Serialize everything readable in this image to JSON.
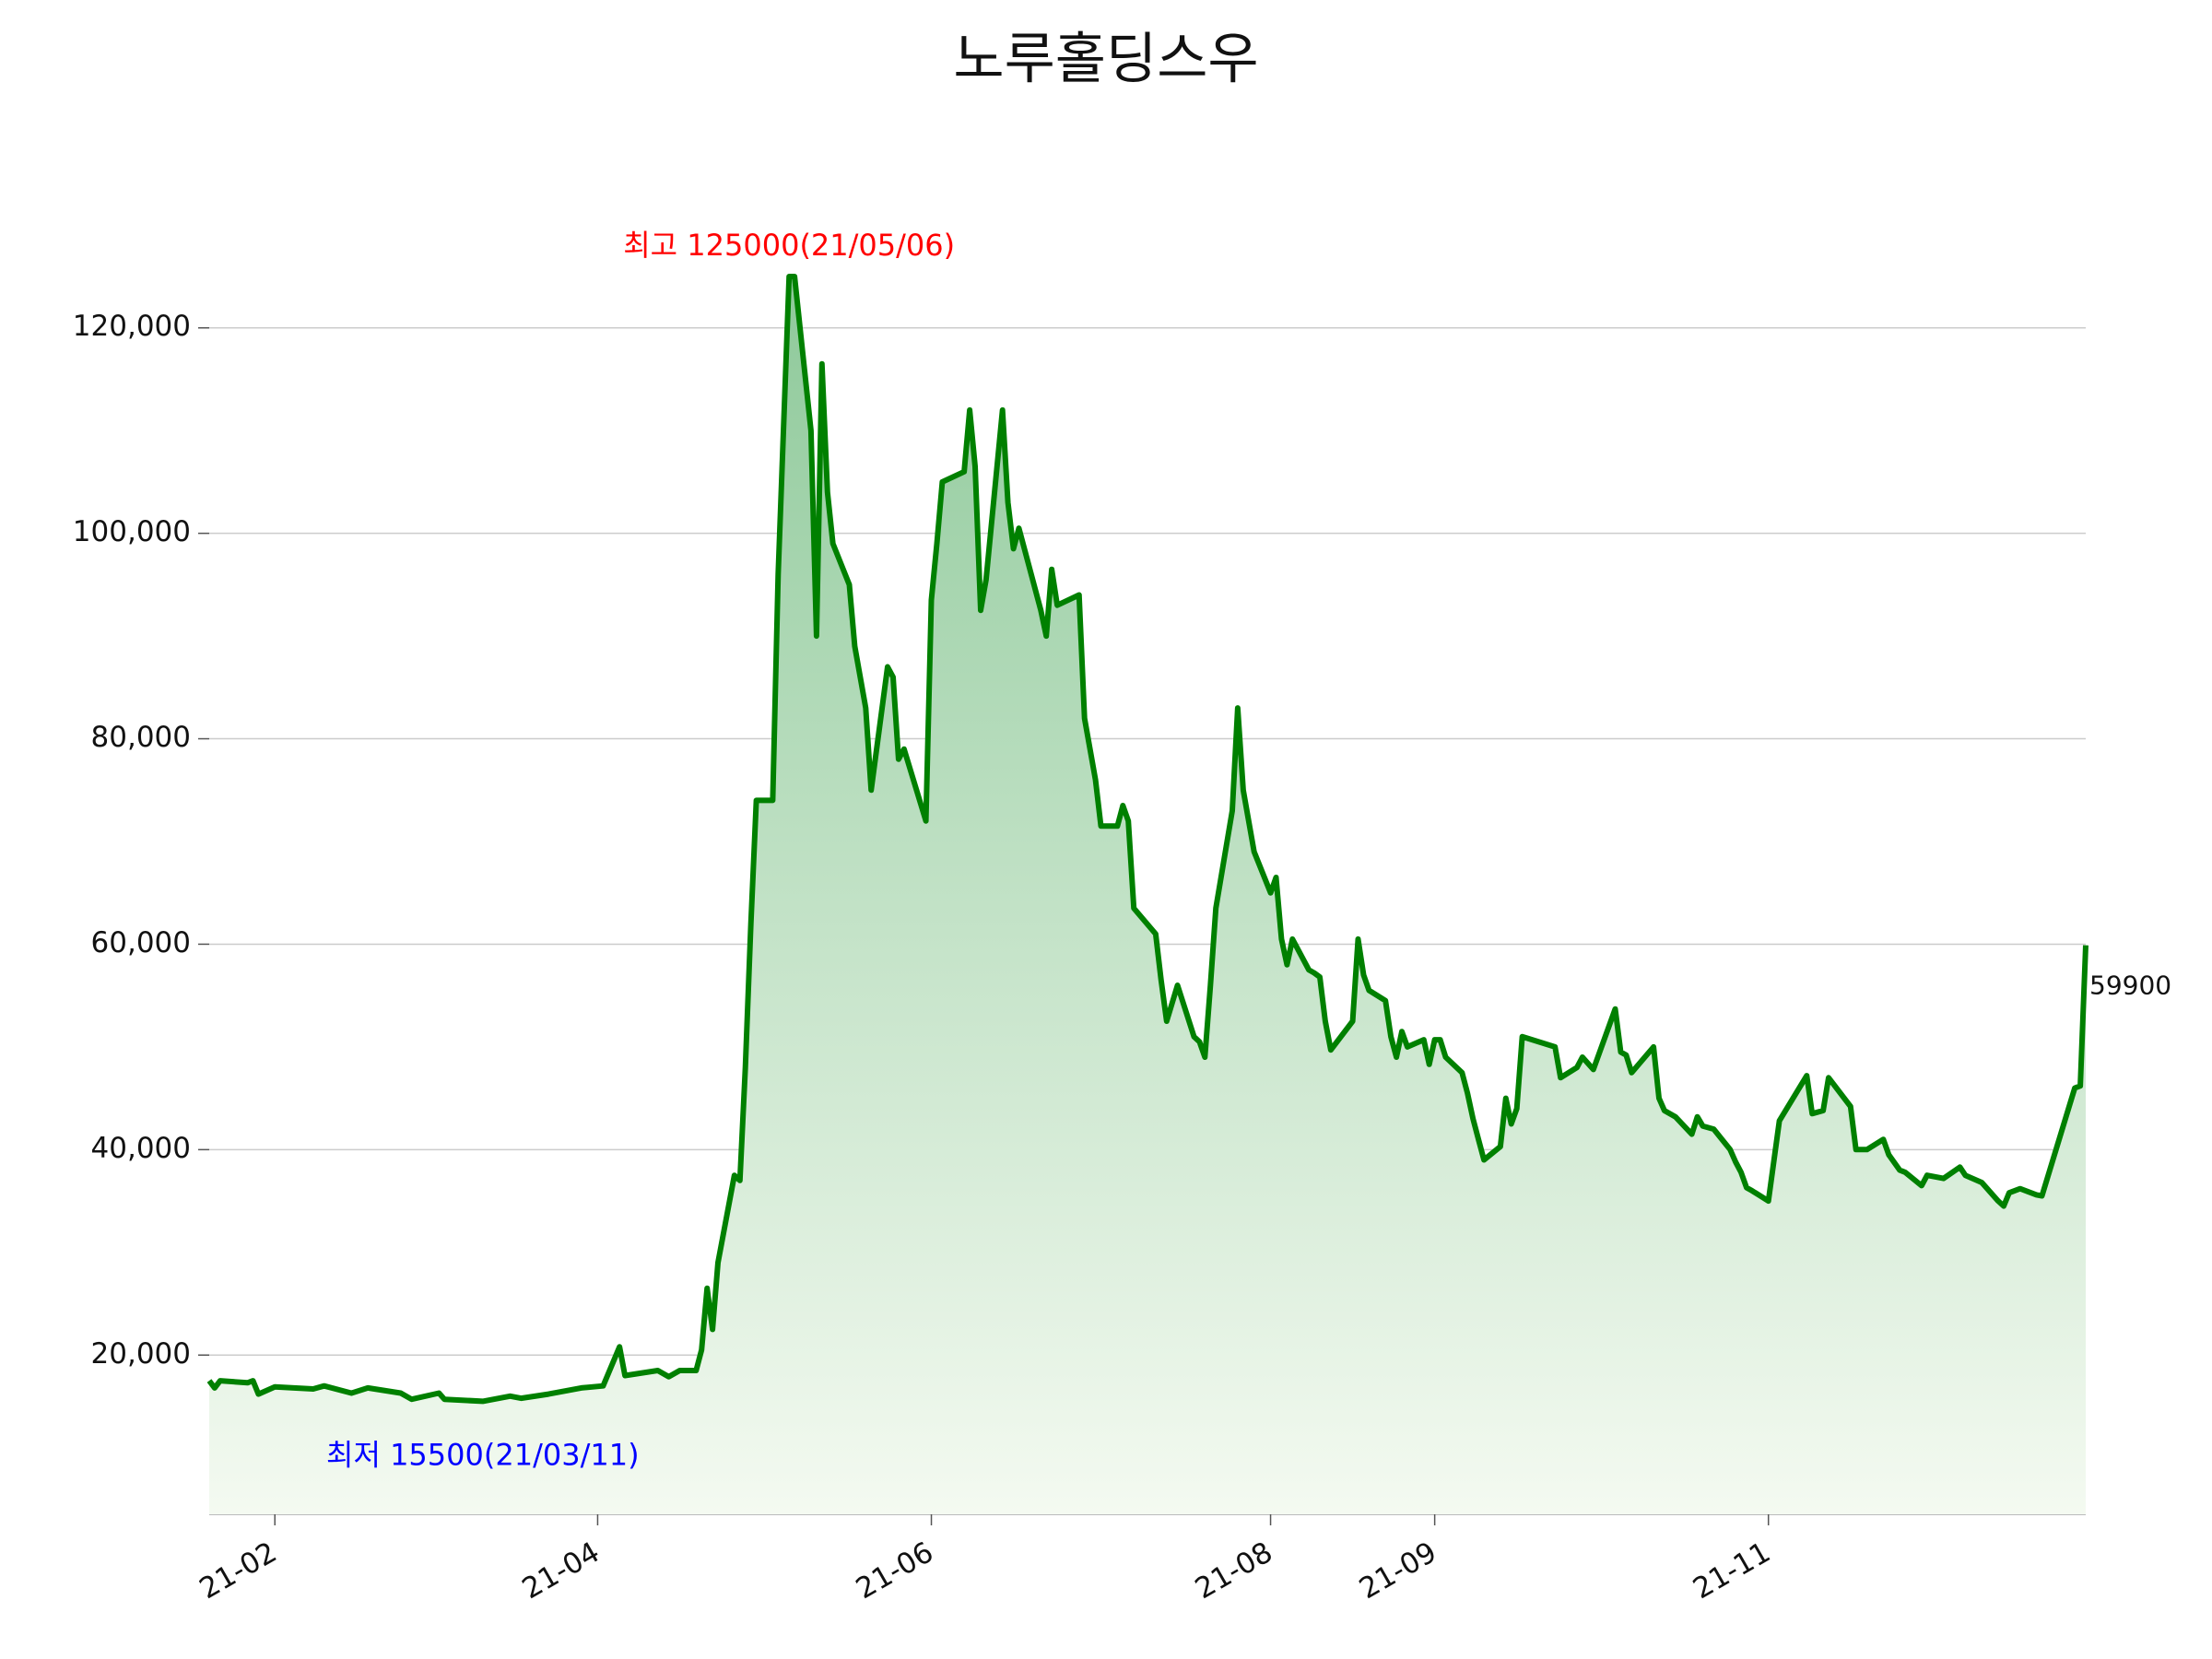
{
  "chart_data": {
    "type": "area-line",
    "title": "노루홀딩스우",
    "color": "#008000",
    "x": [
      "2021-01-20",
      "2021-01-21",
      "2021-01-22",
      "2021-01-27",
      "2021-01-28",
      "2021-01-29",
      "2021-02-01",
      "2021-02-08",
      "2021-02-10",
      "2021-02-15",
      "2021-02-18",
      "2021-02-24",
      "2021-02-26",
      "2021-03-03",
      "2021-03-04",
      "2021-03-11",
      "2021-03-16",
      "2021-03-18",
      "2021-03-23",
      "2021-03-29",
      "2021-04-02",
      "2021-04-05",
      "2021-04-06",
      "2021-04-12",
      "2021-04-14",
      "2021-04-16",
      "2021-04-19",
      "2021-04-20",
      "2021-04-21",
      "2021-04-22",
      "2021-04-23",
      "2021-04-26",
      "2021-04-27",
      "2021-04-28",
      "2021-04-29",
      "2021-04-30",
      "2021-05-03",
      "2021-05-04",
      "2021-05-06",
      "2021-05-07",
      "2021-05-10",
      "2021-05-11",
      "2021-05-12",
      "2021-05-13",
      "2021-05-14",
      "2021-05-17",
      "2021-05-18",
      "2021-05-20",
      "2021-05-21",
      "2021-05-24",
      "2021-05-25",
      "2021-05-26",
      "2021-05-27",
      "2021-05-31",
      "2021-06-01",
      "2021-06-02",
      "2021-06-03",
      "2021-06-07",
      "2021-06-08",
      "2021-06-09",
      "2021-06-10",
      "2021-06-11",
      "2021-06-14",
      "2021-06-15",
      "2021-06-16",
      "2021-06-17",
      "2021-06-21",
      "2021-06-22",
      "2021-06-23",
      "2021-06-24",
      "2021-06-28",
      "2021-06-29",
      "2021-07-01",
      "2021-07-02",
      "2021-07-05",
      "2021-07-06",
      "2021-07-07",
      "2021-07-08",
      "2021-07-12",
      "2021-07-13",
      "2021-07-14",
      "2021-07-16",
      "2021-07-19",
      "2021-07-20",
      "2021-07-21",
      "2021-07-22",
      "2021-07-23",
      "2021-07-26",
      "2021-07-27",
      "2021-07-28",
      "2021-07-30",
      "2021-08-02",
      "2021-08-03",
      "2021-08-04",
      "2021-08-05",
      "2021-08-06",
      "2021-08-09",
      "2021-08-10",
      "2021-08-11",
      "2021-08-12",
      "2021-08-13",
      "2021-08-17",
      "2021-08-18",
      "2021-08-19",
      "2021-08-20",
      "2021-08-23",
      "2021-08-24",
      "2021-08-25",
      "2021-08-26",
      "2021-08-27",
      "2021-08-30",
      "2021-08-31",
      "2021-09-01",
      "2021-09-02",
      "2021-09-03",
      "2021-09-06",
      "2021-09-07",
      "2021-09-08",
      "2021-09-09",
      "2021-09-10",
      "2021-09-13",
      "2021-09-14",
      "2021-09-15",
      "2021-09-16",
      "2021-09-17",
      "2021-09-23",
      "2021-09-24",
      "2021-09-27",
      "2021-09-28",
      "2021-09-30",
      "2021-10-04",
      "2021-10-05",
      "2021-10-06",
      "2021-10-07",
      "2021-10-11",
      "2021-10-12",
      "2021-10-13",
      "2021-10-15",
      "2021-10-18",
      "2021-10-19",
      "2021-10-20",
      "2021-10-22",
      "2021-10-25",
      "2021-10-26",
      "2021-10-27",
      "2021-10-28",
      "2021-10-29",
      "2021-11-01",
      "2021-11-03",
      "2021-11-08",
      "2021-11-09",
      "2021-11-11",
      "2021-11-12",
      "2021-11-16",
      "2021-11-17",
      "2021-11-19",
      "2021-11-22",
      "2021-11-23",
      "2021-11-25",
      "2021-11-26",
      "2021-11-29",
      "2021-11-30",
      "2021-12-03",
      "2021-12-06",
      "2021-12-07",
      "2021-12-10",
      "2021-12-13",
      "2021-12-14",
      "2021-12-15",
      "2021-12-17",
      "2021-12-20",
      "2021-12-21",
      "2021-12-27",
      "2021-12-28",
      "2021-12-29"
    ],
    "values": [
      17500,
      16800,
      17500,
      17300,
      17500,
      16200,
      16900,
      16700,
      17000,
      16300,
      16800,
      16300,
      15700,
      16300,
      15700,
      15500,
      16000,
      15800,
      16200,
      16800,
      17000,
      20800,
      18000,
      18500,
      17900,
      18500,
      18500,
      20500,
      26500,
      22500,
      29000,
      37500,
      37000,
      48000,
      62000,
      74000,
      74000,
      96000,
      125000,
      125000,
      110000,
      90000,
      116500,
      104000,
      99000,
      95000,
      89000,
      83000,
      75000,
      87000,
      86000,
      78000,
      79000,
      72000,
      93500,
      99000,
      105000,
      106000,
      112000,
      106500,
      92500,
      95500,
      112000,
      103000,
      98500,
      100500,
      92500,
      90000,
      96500,
      93000,
      94000,
      82000,
      76000,
      71500,
      71500,
      73500,
      72000,
      63500,
      61000,
      56500,
      52500,
      56000,
      51000,
      50500,
      49000,
      56000,
      63500,
      73000,
      83000,
      75000,
      69000,
      65000,
      66500,
      60500,
      58000,
      60500,
      57500,
      57200,
      56800,
      52500,
      49700,
      52500,
      60500,
      57000,
      55500,
      54500,
      51000,
      49000,
      51500,
      50000,
      50700,
      48300,
      50700,
      50700,
      49000,
      47500,
      45500,
      43000,
      41000,
      39000,
      40300,
      45000,
      42500,
      44000,
      51000,
      50000,
      47000,
      48000,
      49000,
      47800,
      53700,
      49500,
      49200,
      47500,
      50000,
      45000,
      43800,
      43200,
      41500,
      43200,
      42300,
      42000,
      40000,
      38800,
      37800,
      36300,
      36000,
      35000,
      42800,
      47200,
      43500,
      43800,
      47000,
      44200,
      40000,
      40000,
      41000,
      39500,
      38000,
      37800,
      36500,
      37500,
      37200,
      38300,
      37500,
      36800,
      35000,
      34500,
      35800,
      36200,
      35600,
      35500,
      46000,
      46200,
      59900
    ],
    "xlim": [
      "2021-01-20",
      "2021-12-29"
    ],
    "xticks": [
      {
        "value": "2021-02-01",
        "label": "21-02"
      },
      {
        "value": "2021-04-01",
        "label": "21-04"
      },
      {
        "value": "2021-06-01",
        "label": "21-06"
      },
      {
        "value": "2021-08-02",
        "label": "21-08"
      },
      {
        "value": "2021-09-01",
        "label": "21-09"
      },
      {
        "value": "2021-11-01",
        "label": "21-11"
      }
    ],
    "ylim": [
      4500,
      132000
    ],
    "yticks": [
      {
        "value": 20000,
        "label": "20,000"
      },
      {
        "value": 40000,
        "label": "40,000"
      },
      {
        "value": 60000,
        "label": "60,000"
      },
      {
        "value": 80000,
        "label": "80,000"
      },
      {
        "value": 100000,
        "label": "100,000"
      },
      {
        "value": 120000,
        "label": "120,000"
      }
    ],
    "grid": true,
    "annotations": [
      {
        "text": "최고 125000(21/05/06)",
        "x": "2021-05-06",
        "color": "red",
        "position": "above"
      },
      {
        "text": "최저 15500(21/03/11)",
        "x": "2021-03-11",
        "color": "blue",
        "position": "below"
      }
    ]
  }
}
